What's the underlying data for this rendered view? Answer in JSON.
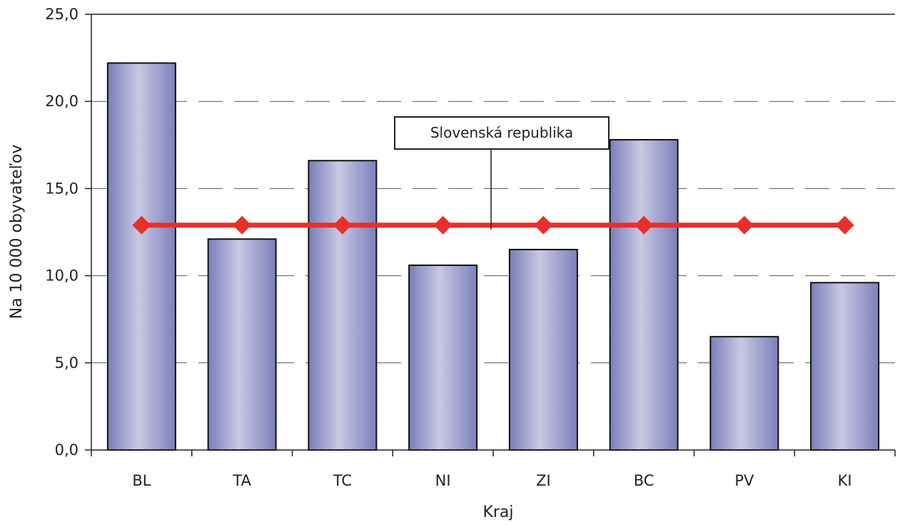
{
  "chart_data": {
    "type": "bar",
    "title": "",
    "xlabel": "Kraj",
    "ylabel": "Na 10 000 obyvateľov",
    "categories": [
      "BL",
      "TA",
      "TC",
      "NI",
      "ZI",
      "BC",
      "PV",
      "KI"
    ],
    "series": [
      {
        "type": "bar",
        "values": [
          22.2,
          12.1,
          16.6,
          10.6,
          11.5,
          17.8,
          6.5,
          9.6
        ]
      },
      {
        "name": "Slovenská republika",
        "type": "line",
        "color": "#e8302a",
        "values": [
          12.9,
          12.9,
          12.9,
          12.9,
          12.9,
          12.9,
          12.9,
          12.9
        ]
      }
    ],
    "ylim": [
      0,
      25
    ],
    "yticks": [
      "0,0",
      "5,0",
      "10,0",
      "15,0",
      "20,0",
      "25,0"
    ],
    "grid": "horizontal dashed",
    "legend": "callout label above line",
    "colors": {
      "bar_edge": "#7a7eb8",
      "bar_center": "#c9c8e4",
      "line": "#e8302a"
    }
  }
}
